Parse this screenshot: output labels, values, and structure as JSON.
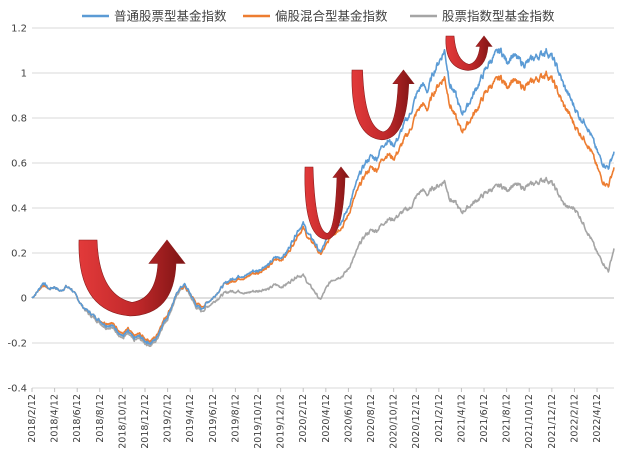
{
  "chart_data": {
    "type": "line",
    "legend_position": "top",
    "grid": true,
    "ylim": [
      -0.4,
      1.2
    ],
    "yticks": [
      "-0.4",
      "-0.2",
      "0",
      "0.2",
      "0.4",
      "0.6",
      "0.8",
      "1",
      "1.2"
    ],
    "x_tick_labels": [
      "2018/2/12",
      "2018/4/12",
      "2018/6/12",
      "2018/8/12",
      "2018/10/12",
      "2018/12/12",
      "2019/2/12",
      "2019/4/12",
      "2019/6/12",
      "2019/8/12",
      "2019/10/12",
      "2019/12/12",
      "2020/2/12",
      "2020/4/12",
      "2020/6/12",
      "2020/8/12",
      "2020/10/12",
      "2020/12/12",
      "2021/2/12",
      "2021/4/12",
      "2021/6/12",
      "2021/8/12",
      "2021/10/12",
      "2021/12/12",
      "2022/2/12",
      "2022/4/12"
    ],
    "x_months": [
      0,
      2,
      4,
      6,
      8,
      10,
      12,
      14,
      16,
      18,
      20,
      22,
      24,
      26,
      28,
      30,
      32,
      34,
      36,
      38,
      40,
      42,
      44,
      46,
      48,
      50
    ],
    "x_range_months": [
      0,
      51.5
    ],
    "series": [
      {
        "name": "普通股票型基金指数",
        "color": "#5b9bd5",
        "points": [
          [
            0,
            0.0
          ],
          [
            0.5,
            0.03
          ],
          [
            1,
            0.07
          ],
          [
            1.5,
            0.04
          ],
          [
            2,
            0.05
          ],
          [
            2.5,
            0.03
          ],
          [
            3,
            0.05
          ],
          [
            3.5,
            0.04
          ],
          [
            4,
            0.0
          ],
          [
            4.5,
            -0.04
          ],
          [
            5,
            -0.06
          ],
          [
            5.5,
            -0.08
          ],
          [
            6,
            -0.1
          ],
          [
            6.5,
            -0.12
          ],
          [
            7,
            -0.12
          ],
          [
            7.5,
            -0.14
          ],
          [
            8,
            -0.17
          ],
          [
            8.5,
            -0.15
          ],
          [
            9,
            -0.18
          ],
          [
            9.5,
            -0.17
          ],
          [
            10,
            -0.19
          ],
          [
            10.5,
            -0.2
          ],
          [
            11,
            -0.18
          ],
          [
            11.5,
            -0.12
          ],
          [
            12,
            -0.08
          ],
          [
            12.5,
            -0.02
          ],
          [
            13,
            0.04
          ],
          [
            13.5,
            0.06
          ],
          [
            14,
            0.02
          ],
          [
            14.5,
            -0.03
          ],
          [
            15,
            -0.05
          ],
          [
            15.5,
            -0.02
          ],
          [
            16,
            0.0
          ],
          [
            16.5,
            0.03
          ],
          [
            17,
            0.06
          ],
          [
            17.5,
            0.08
          ],
          [
            18,
            0.09
          ],
          [
            18.5,
            0.1
          ],
          [
            19,
            0.1
          ],
          [
            19.5,
            0.12
          ],
          [
            20,
            0.12
          ],
          [
            20.5,
            0.14
          ],
          [
            21,
            0.15
          ],
          [
            21.5,
            0.18
          ],
          [
            22,
            0.18
          ],
          [
            22.5,
            0.2
          ],
          [
            23,
            0.25
          ],
          [
            23.5,
            0.3
          ],
          [
            24,
            0.33
          ],
          [
            24.5,
            0.28
          ],
          [
            25,
            0.25
          ],
          [
            25.5,
            0.2
          ],
          [
            26,
            0.25
          ],
          [
            26.5,
            0.3
          ],
          [
            27,
            0.32
          ],
          [
            27.5,
            0.35
          ],
          [
            28,
            0.4
          ],
          [
            28.5,
            0.48
          ],
          [
            29,
            0.55
          ],
          [
            29.5,
            0.6
          ],
          [
            30,
            0.63
          ],
          [
            30.5,
            0.62
          ],
          [
            31,
            0.68
          ],
          [
            31.5,
            0.7
          ],
          [
            32,
            0.68
          ],
          [
            32.5,
            0.72
          ],
          [
            33,
            0.78
          ],
          [
            33.5,
            0.82
          ],
          [
            34,
            0.9
          ],
          [
            34.5,
            0.95
          ],
          [
            35,
            0.92
          ],
          [
            35.5,
            1.0
          ],
          [
            36,
            1.05
          ],
          [
            36.5,
            1.1
          ],
          [
            37,
            0.95
          ],
          [
            37.5,
            0.9
          ],
          [
            38,
            0.82
          ],
          [
            38.5,
            0.85
          ],
          [
            39,
            0.9
          ],
          [
            39.5,
            0.95
          ],
          [
            40,
            1.0
          ],
          [
            40.5,
            1.05
          ],
          [
            41,
            1.08
          ],
          [
            41.5,
            1.1
          ],
          [
            42,
            1.05
          ],
          [
            42.5,
            1.08
          ],
          [
            43,
            1.06
          ],
          [
            43.5,
            1.04
          ],
          [
            44,
            1.05
          ],
          [
            44.5,
            1.07
          ],
          [
            45,
            1.08
          ],
          [
            45.5,
            1.1
          ],
          [
            46,
            1.07
          ],
          [
            46.5,
            1.02
          ],
          [
            47,
            0.95
          ],
          [
            47.5,
            0.9
          ],
          [
            48,
            0.85
          ],
          [
            48.5,
            0.8
          ],
          [
            49,
            0.78
          ],
          [
            49.5,
            0.72
          ],
          [
            50,
            0.65
          ],
          [
            50.5,
            0.6
          ],
          [
            51,
            0.58
          ],
          [
            51.5,
            0.65
          ]
        ]
      },
      {
        "name": "偏股混合型基金指数",
        "color": "#ed7d31",
        "points": [
          [
            0,
            0.0
          ],
          [
            0.5,
            0.03
          ],
          [
            1,
            0.06
          ],
          [
            1.5,
            0.04
          ],
          [
            2,
            0.05
          ],
          [
            2.5,
            0.03
          ],
          [
            3,
            0.05
          ],
          [
            3.5,
            0.04
          ],
          [
            4,
            0.0
          ],
          [
            4.5,
            -0.04
          ],
          [
            5,
            -0.06
          ],
          [
            5.5,
            -0.08
          ],
          [
            6,
            -0.1
          ],
          [
            6.5,
            -0.11
          ],
          [
            7,
            -0.11
          ],
          [
            7.5,
            -0.13
          ],
          [
            8,
            -0.16
          ],
          [
            8.5,
            -0.14
          ],
          [
            9,
            -0.17
          ],
          [
            9.5,
            -0.16
          ],
          [
            10,
            -0.18
          ],
          [
            10.5,
            -0.19
          ],
          [
            11,
            -0.17
          ],
          [
            11.5,
            -0.11
          ],
          [
            12,
            -0.07
          ],
          [
            12.5,
            -0.02
          ],
          [
            13,
            0.04
          ],
          [
            13.5,
            0.05
          ],
          [
            14,
            0.02
          ],
          [
            14.5,
            -0.02
          ],
          [
            15,
            -0.04
          ],
          [
            15.5,
            -0.02
          ],
          [
            16,
            0.0
          ],
          [
            16.5,
            0.03
          ],
          [
            17,
            0.06
          ],
          [
            17.5,
            0.07
          ],
          [
            18,
            0.08
          ],
          [
            18.5,
            0.09
          ],
          [
            19,
            0.09
          ],
          [
            19.5,
            0.11
          ],
          [
            20,
            0.11
          ],
          [
            20.5,
            0.13
          ],
          [
            21,
            0.14
          ],
          [
            21.5,
            0.17
          ],
          [
            22,
            0.17
          ],
          [
            22.5,
            0.19
          ],
          [
            23,
            0.23
          ],
          [
            23.5,
            0.28
          ],
          [
            24,
            0.31
          ],
          [
            24.5,
            0.26
          ],
          [
            25,
            0.24
          ],
          [
            25.5,
            0.19
          ],
          [
            26,
            0.23
          ],
          [
            26.5,
            0.28
          ],
          [
            27,
            0.3
          ],
          [
            27.5,
            0.32
          ],
          [
            28,
            0.37
          ],
          [
            28.5,
            0.44
          ],
          [
            29,
            0.5
          ],
          [
            29.5,
            0.55
          ],
          [
            30,
            0.58
          ],
          [
            30.5,
            0.57
          ],
          [
            31,
            0.62
          ],
          [
            31.5,
            0.64
          ],
          [
            32,
            0.62
          ],
          [
            32.5,
            0.66
          ],
          [
            33,
            0.71
          ],
          [
            33.5,
            0.75
          ],
          [
            34,
            0.82
          ],
          [
            34.5,
            0.86
          ],
          [
            35,
            0.84
          ],
          [
            35.5,
            0.91
          ],
          [
            36,
            0.95
          ],
          [
            36.5,
            0.98
          ],
          [
            37,
            0.86
          ],
          [
            37.5,
            0.8
          ],
          [
            38,
            0.74
          ],
          [
            38.5,
            0.77
          ],
          [
            39,
            0.81
          ],
          [
            39.5,
            0.85
          ],
          [
            40,
            0.9
          ],
          [
            40.5,
            0.94
          ],
          [
            41,
            0.96
          ],
          [
            41.5,
            0.98
          ],
          [
            42,
            0.94
          ],
          [
            42.5,
            0.97
          ],
          [
            43,
            0.95
          ],
          [
            43.5,
            0.94
          ],
          [
            44,
            0.95
          ],
          [
            44.5,
            0.97
          ],
          [
            45,
            0.98
          ],
          [
            45.5,
            1.0
          ],
          [
            46,
            0.97
          ],
          [
            46.5,
            0.92
          ],
          [
            47,
            0.86
          ],
          [
            47.5,
            0.82
          ],
          [
            48,
            0.77
          ],
          [
            48.5,
            0.73
          ],
          [
            49,
            0.7
          ],
          [
            49.5,
            0.65
          ],
          [
            50,
            0.58
          ],
          [
            50.5,
            0.52
          ],
          [
            51,
            0.5
          ],
          [
            51.5,
            0.58
          ]
        ]
      },
      {
        "name": "股票指数型基金指数",
        "color": "#a5a5a5",
        "points": [
          [
            0,
            0.0
          ],
          [
            0.5,
            0.03
          ],
          [
            1,
            0.06
          ],
          [
            1.5,
            0.04
          ],
          [
            2,
            0.05
          ],
          [
            2.5,
            0.03
          ],
          [
            3,
            0.05
          ],
          [
            3.5,
            0.04
          ],
          [
            4,
            0.0
          ],
          [
            4.5,
            -0.04
          ],
          [
            5,
            -0.07
          ],
          [
            5.5,
            -0.09
          ],
          [
            6,
            -0.11
          ],
          [
            6.5,
            -0.13
          ],
          [
            7,
            -0.13
          ],
          [
            7.5,
            -0.15
          ],
          [
            8,
            -0.18
          ],
          [
            8.5,
            -0.16
          ],
          [
            9,
            -0.19
          ],
          [
            9.5,
            -0.18
          ],
          [
            10,
            -0.2
          ],
          [
            10.5,
            -0.21
          ],
          [
            11,
            -0.19
          ],
          [
            11.5,
            -0.13
          ],
          [
            12,
            -0.09
          ],
          [
            12.5,
            -0.03
          ],
          [
            13,
            0.03
          ],
          [
            13.5,
            0.05
          ],
          [
            14,
            0.01
          ],
          [
            14.5,
            -0.04
          ],
          [
            15,
            -0.06
          ],
          [
            15.5,
            -0.04
          ],
          [
            16,
            -0.02
          ],
          [
            16.5,
            0.0
          ],
          [
            17,
            0.02
          ],
          [
            17.5,
            0.03
          ],
          [
            18,
            0.03
          ],
          [
            18.5,
            0.03
          ],
          [
            19,
            0.02
          ],
          [
            19.5,
            0.03
          ],
          [
            20,
            0.03
          ],
          [
            20.5,
            0.04
          ],
          [
            21,
            0.04
          ],
          [
            21.5,
            0.06
          ],
          [
            22,
            0.05
          ],
          [
            22.5,
            0.06
          ],
          [
            23,
            0.08
          ],
          [
            23.5,
            0.1
          ],
          [
            24,
            0.1
          ],
          [
            24.5,
            0.06
          ],
          [
            25,
            0.03
          ],
          [
            25.5,
            -0.01
          ],
          [
            26,
            0.04
          ],
          [
            26.5,
            0.08
          ],
          [
            27,
            0.09
          ],
          [
            27.5,
            0.1
          ],
          [
            28,
            0.13
          ],
          [
            28.5,
            0.18
          ],
          [
            29,
            0.24
          ],
          [
            29.5,
            0.28
          ],
          [
            30,
            0.3
          ],
          [
            30.5,
            0.3
          ],
          [
            31,
            0.33
          ],
          [
            31.5,
            0.35
          ],
          [
            32,
            0.35
          ],
          [
            32.5,
            0.37
          ],
          [
            33,
            0.39
          ],
          [
            33.5,
            0.4
          ],
          [
            34,
            0.45
          ],
          [
            34.5,
            0.48
          ],
          [
            35,
            0.46
          ],
          [
            35.5,
            0.49
          ],
          [
            36,
            0.5
          ],
          [
            36.5,
            0.52
          ],
          [
            37,
            0.44
          ],
          [
            37.5,
            0.42
          ],
          [
            38,
            0.38
          ],
          [
            38.5,
            0.4
          ],
          [
            39,
            0.42
          ],
          [
            39.5,
            0.44
          ],
          [
            40,
            0.46
          ],
          [
            40.5,
            0.48
          ],
          [
            41,
            0.49
          ],
          [
            41.5,
            0.5
          ],
          [
            42,
            0.48
          ],
          [
            42.5,
            0.5
          ],
          [
            43,
            0.5
          ],
          [
            43.5,
            0.49
          ],
          [
            44,
            0.5
          ],
          [
            44.5,
            0.51
          ],
          [
            45,
            0.52
          ],
          [
            45.5,
            0.53
          ],
          [
            46,
            0.51
          ],
          [
            46.5,
            0.47
          ],
          [
            47,
            0.42
          ],
          [
            47.5,
            0.4
          ],
          [
            48,
            0.4
          ],
          [
            48.5,
            0.36
          ],
          [
            49,
            0.31
          ],
          [
            49.5,
            0.26
          ],
          [
            50,
            0.2
          ],
          [
            50.5,
            0.16
          ],
          [
            51,
            0.12
          ],
          [
            51.5,
            0.22
          ]
        ]
      }
    ]
  },
  "arrow_color": "#c0282a"
}
